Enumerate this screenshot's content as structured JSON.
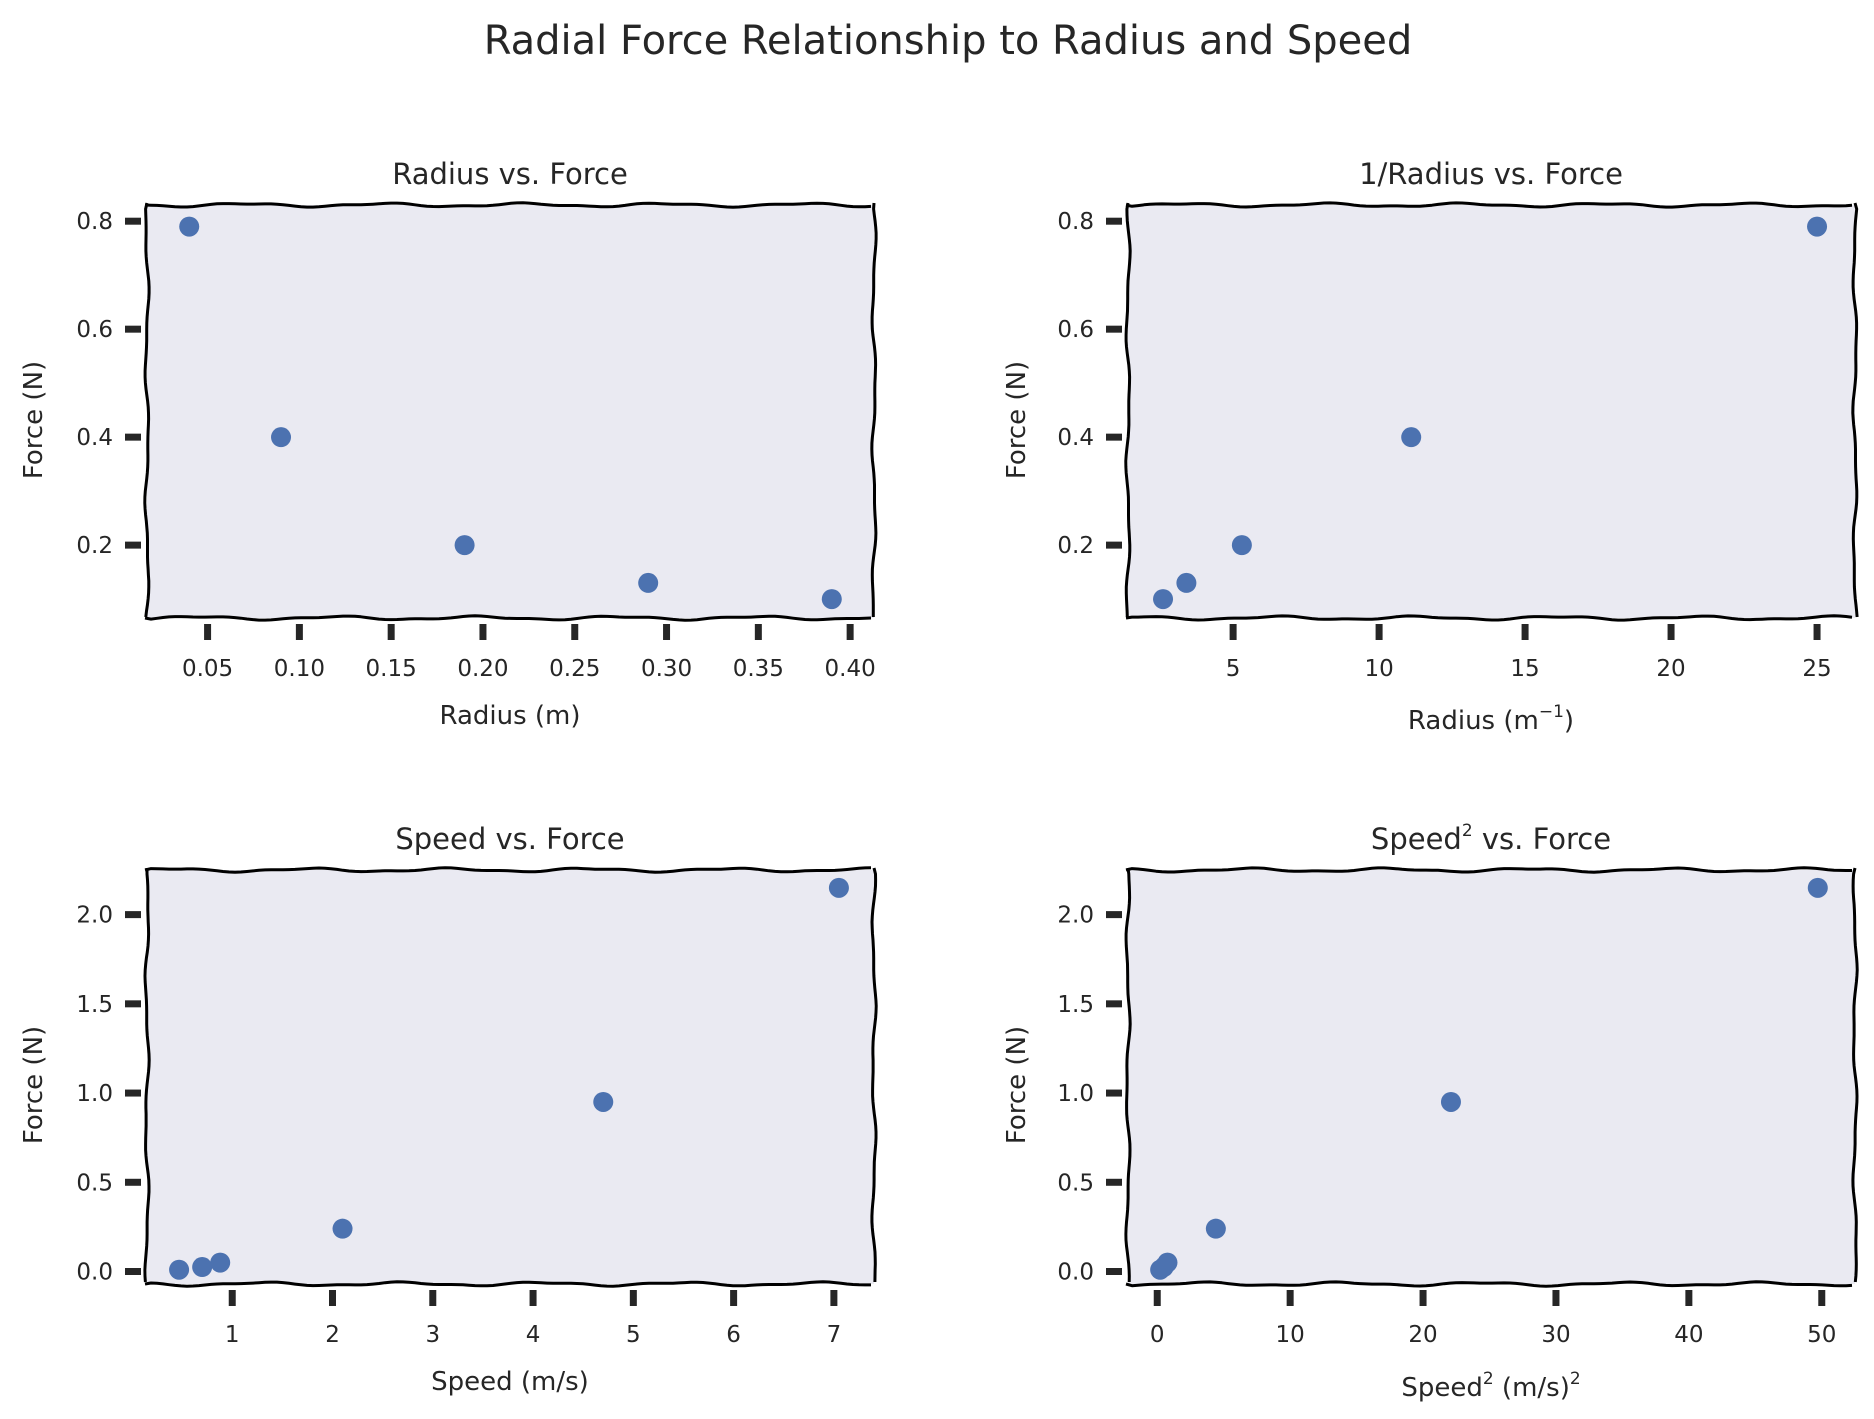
{
  "title": "Radial Force Relationship to Radius and Speed",
  "colors": {
    "marker": "#4c72b0",
    "axes_bg": "#eaeaf2",
    "frame": "#000000",
    "text": "#262626"
  },
  "chart_data": [
    {
      "type": "scatter",
      "title": "Radius vs. Force",
      "xlabel": "Radius (m)",
      "ylabel": "Force (N)",
      "xlim": [
        0.017,
        0.413
      ],
      "ylim": [
        0.065,
        0.83
      ],
      "xticks": [
        0.05,
        0.1,
        0.15,
        0.2,
        0.25,
        0.3,
        0.35,
        0.4
      ],
      "xtick_labels": [
        "0.05",
        "0.10",
        "0.15",
        "0.20",
        "0.25",
        "0.30",
        "0.35",
        "0.40"
      ],
      "yticks": [
        0.2,
        0.4,
        0.6,
        0.8
      ],
      "ytick_labels": [
        "0.2",
        "0.4",
        "0.6",
        "0.8"
      ],
      "grid": false,
      "x": [
        0.04,
        0.09,
        0.19,
        0.29,
        0.39
      ],
      "y": [
        0.79,
        0.4,
        0.2,
        0.13,
        0.1
      ]
    },
    {
      "type": "scatter",
      "title": "1/Radius vs. Force",
      "xlabel": "Radius (m⁻¹)",
      "ylabel": "Force (N)",
      "xlim": [
        1.4,
        26.3
      ],
      "ylim": [
        0.065,
        0.83
      ],
      "xticks": [
        5,
        10,
        15,
        20,
        25
      ],
      "xtick_labels": [
        "5",
        "10",
        "15",
        "20",
        "25"
      ],
      "yticks": [
        0.2,
        0.4,
        0.6,
        0.8
      ],
      "ytick_labels": [
        "0.2",
        "0.4",
        "0.6",
        "0.8"
      ],
      "grid": false,
      "x": [
        25.0,
        11.1,
        5.3,
        3.4,
        2.6
      ],
      "y": [
        0.79,
        0.4,
        0.2,
        0.13,
        0.1
      ]
    },
    {
      "type": "scatter",
      "title": "Speed vs. Force",
      "xlabel": "Speed (m/s)",
      "ylabel": "Force (N)",
      "xlim": [
        0.15,
        7.4
      ],
      "ylim": [
        -0.07,
        2.25
      ],
      "xticks": [
        1,
        2,
        3,
        4,
        5,
        6,
        7
      ],
      "xtick_labels": [
        "1",
        "2",
        "3",
        "4",
        "5",
        "6",
        "7"
      ],
      "yticks": [
        0.0,
        0.5,
        1.0,
        1.5,
        2.0
      ],
      "ytick_labels": [
        "0.0",
        "0.5",
        "1.0",
        "1.5",
        "2.0"
      ],
      "grid": false,
      "x": [
        0.47,
        0.7,
        0.88,
        2.1,
        4.7,
        7.05
      ],
      "y": [
        0.01,
        0.025,
        0.05,
        0.24,
        0.95,
        2.15
      ]
    },
    {
      "type": "scatter",
      "title": "Speed² vs. Force",
      "xlabel": "Speed² (m/s)²",
      "ylabel": "Force (N)",
      "xlim": [
        -2.2,
        52.5
      ],
      "ylim": [
        -0.07,
        2.25
      ],
      "xticks": [
        0,
        10,
        20,
        30,
        40,
        50
      ],
      "xtick_labels": [
        "0",
        "10",
        "20",
        "30",
        "40",
        "50"
      ],
      "yticks": [
        0.0,
        0.5,
        1.0,
        1.5,
        2.0
      ],
      "ytick_labels": [
        "0.0",
        "0.5",
        "1.0",
        "1.5",
        "2.0"
      ],
      "grid": false,
      "x": [
        0.22,
        0.49,
        0.77,
        4.41,
        22.1,
        49.7
      ],
      "y": [
        0.01,
        0.025,
        0.05,
        0.24,
        0.95,
        2.15
      ]
    }
  ]
}
